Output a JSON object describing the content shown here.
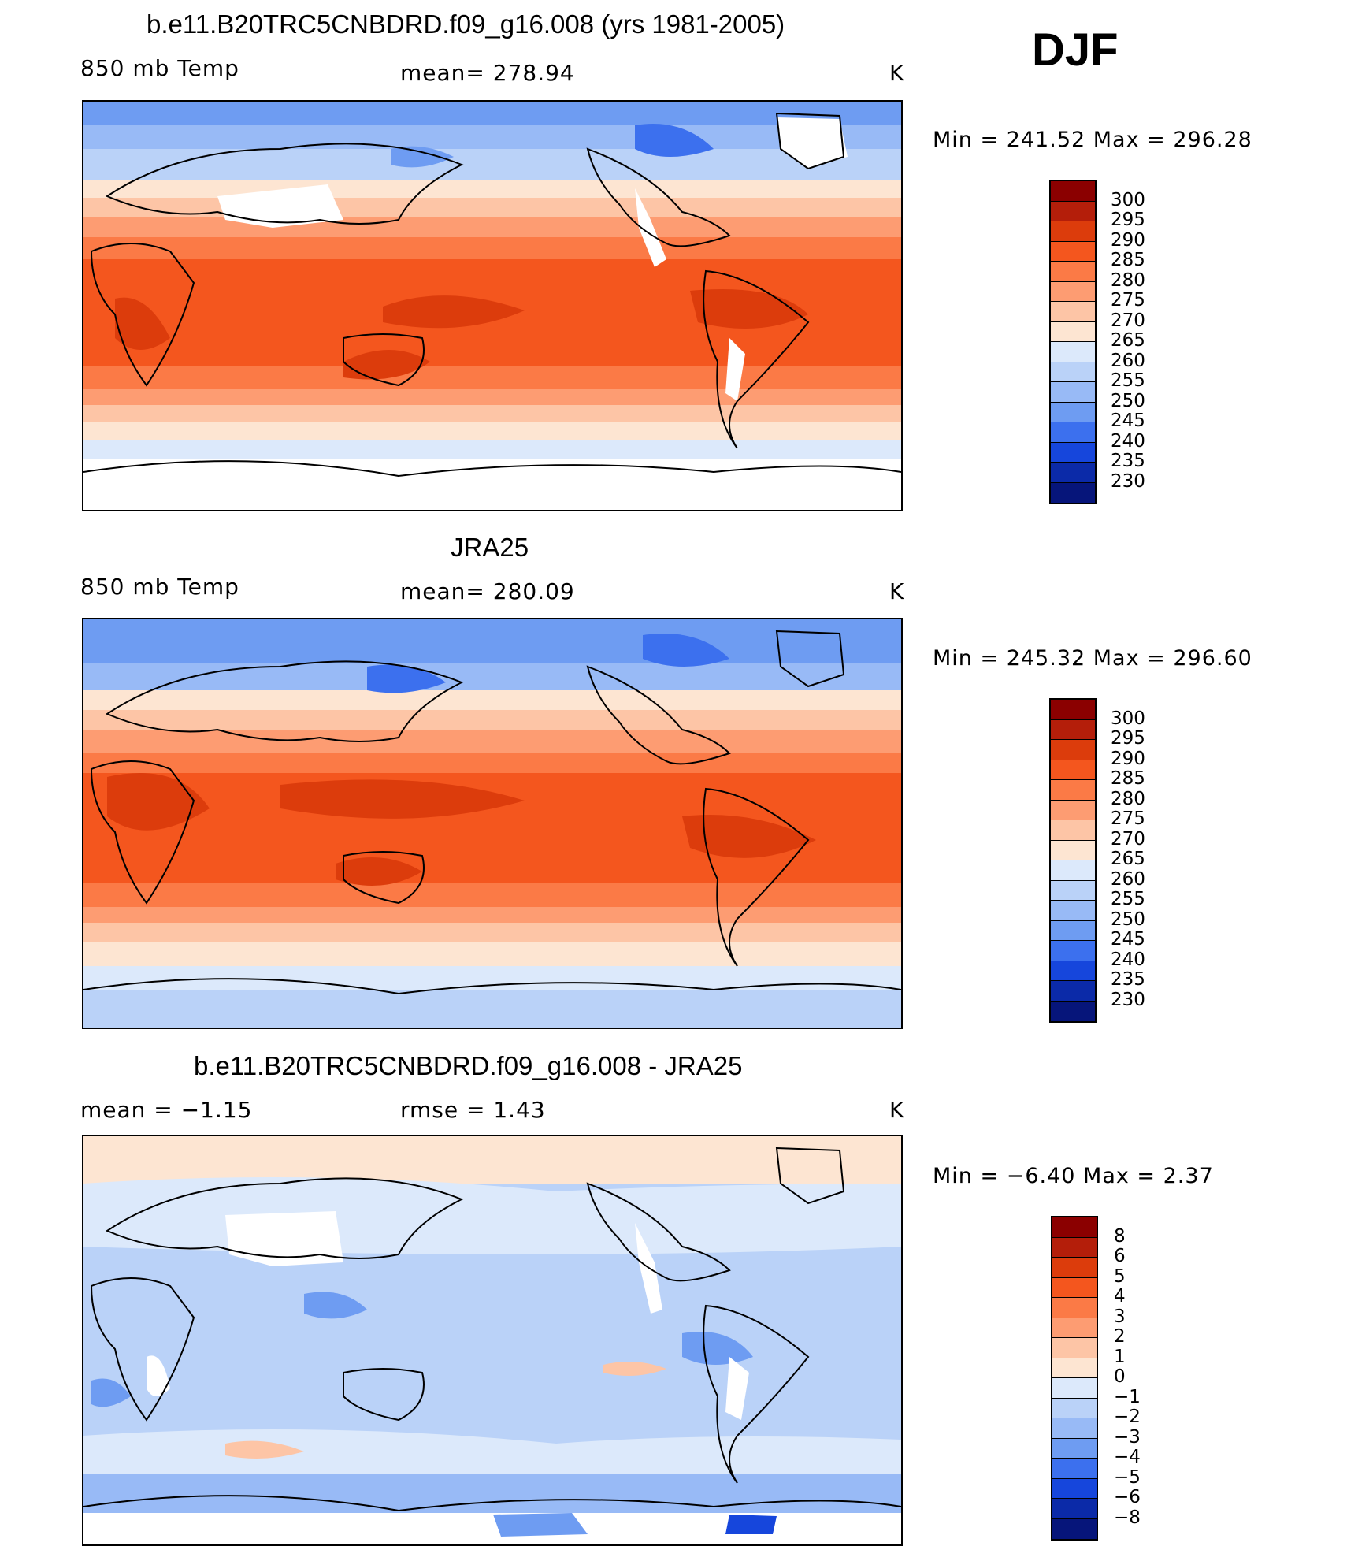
{
  "season": "DJF",
  "panels": [
    {
      "title": "b.e11.B20TRC5CNBDRD.f09_g16.008 (yrs 1981-2005)",
      "left_label": "850 mb Temp",
      "center_label": "mean=  278.94",
      "right_label": "K",
      "minmax": "Min  =  241.52  Max  =  296.28"
    },
    {
      "title": "JRA25",
      "left_label": "850 mb Temp",
      "center_label": "mean=  280.09",
      "right_label": "K",
      "minmax": "Min  =  245.32  Max  =  296.60"
    },
    {
      "title": "b.e11.B20TRC5CNBDRD.f09_g16.008 - JRA25",
      "left_label": "mean  =    −1.15",
      "center_label": "rmse  =     1.43",
      "right_label": "K",
      "minmax": "Min  =    −6.40  Max  =     2.37"
    }
  ],
  "colorbars": {
    "temp": {
      "labels": [
        "300",
        "295",
        "290",
        "285",
        "280",
        "275",
        "270",
        "265",
        "260",
        "255",
        "250",
        "245",
        "240",
        "235",
        "230"
      ],
      "colors": [
        "#8b0000",
        "#b41e0a",
        "#dc3c0c",
        "#f4561e",
        "#fb7a46",
        "#fd9c72",
        "#fdc5a6",
        "#fde5d2",
        "#dce9fb",
        "#bad2f8",
        "#98baf6",
        "#6e9cf2",
        "#3c70ee",
        "#1646dc",
        "#0b2aa8",
        "#06157a"
      ]
    },
    "diff": {
      "labels": [
        "8",
        "6",
        "5",
        "4",
        "3",
        "2",
        "1",
        "0",
        "−1",
        "−2",
        "−3",
        "−4",
        "−5",
        "−6",
        "−8"
      ],
      "colors": [
        "#8b0000",
        "#b41e0a",
        "#dc3c0c",
        "#f4561e",
        "#fb7a46",
        "#fd9c72",
        "#fdc5a6",
        "#fde5d2",
        "#dce9fb",
        "#bad2f8",
        "#98baf6",
        "#6e9cf2",
        "#3c70ee",
        "#1646dc",
        "#0b2aa8",
        "#06157a"
      ]
    }
  }
}
